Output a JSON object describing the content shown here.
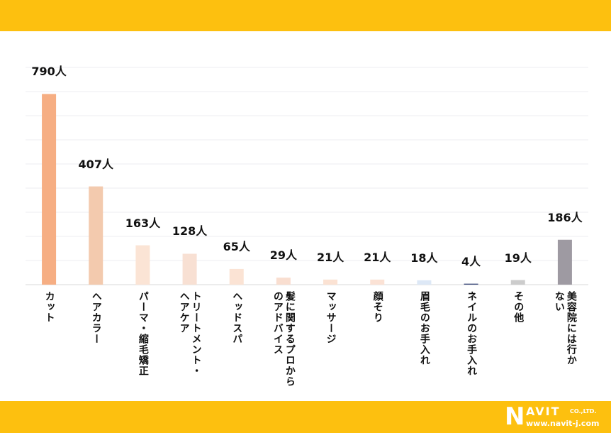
{
  "chart_data": {
    "type": "bar",
    "categories": [
      "カット",
      "ヘアカラー",
      "パーマ・縮毛矯正",
      "トリートメント・\nヘアケア",
      "ヘッドスパ",
      "髪に関するプロから\nのアドバイス",
      "マッサージ",
      "顔そり",
      "眉毛のお手入れ",
      "ネイルのお手入れ",
      "その他",
      "美容院には行か\nない"
    ],
    "values": [
      790,
      407,
      163,
      128,
      65,
      29,
      21,
      21,
      18,
      4,
      19,
      186
    ],
    "data_labels": [
      "790人",
      "407人",
      "163人",
      "128人",
      "65人",
      "29人",
      "21人",
      "21人",
      "18人",
      "4人",
      "19人",
      "186人"
    ],
    "colors": [
      "#F6AE83",
      "#F3CAAE",
      "#FBE4D5",
      "#F8E0D3",
      "#FBE3D4",
      "#F9DED0",
      "#FBE2D3",
      "#FBE2D5",
      "#DDE8F6",
      "#3C4A7A",
      "#CCCCCC",
      "#9E9AA2"
    ],
    "ylim": [
      0,
      900
    ],
    "ytick_step": 100,
    "grid": true,
    "title": "",
    "xlabel": "",
    "ylabel": ""
  },
  "branding": {
    "logo_text": "NAVIT CO.,LTD.",
    "url": "www.navit-j.com"
  }
}
